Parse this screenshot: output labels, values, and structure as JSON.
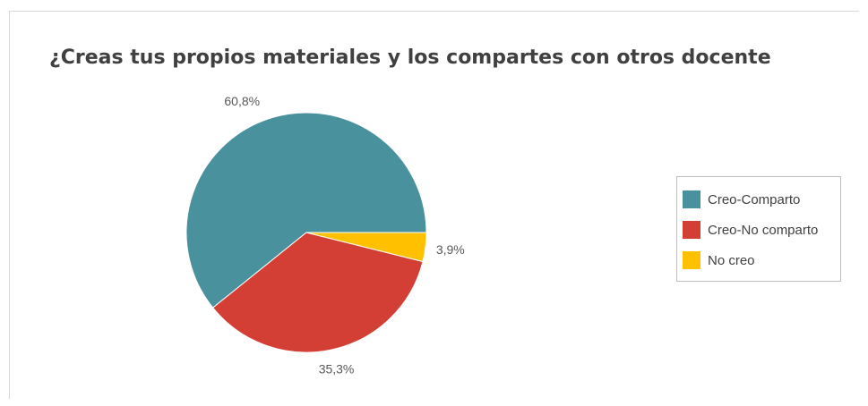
{
  "chart_data": {
    "type": "pie",
    "title": "¿Creas tus propios materiales y los compartes con otros docente",
    "legend_position": "right",
    "slices": [
      {
        "name": "Creo-Comparto",
        "value": 60.8,
        "label": "60,8%",
        "color": "#4a919e"
      },
      {
        "name": "Creo-No comparto",
        "value": 35.3,
        "label": "35,3%",
        "color": "#d43f35"
      },
      {
        "name": "No creo",
        "value": 3.9,
        "label": "3,9%",
        "color": "#ffc000"
      }
    ]
  }
}
